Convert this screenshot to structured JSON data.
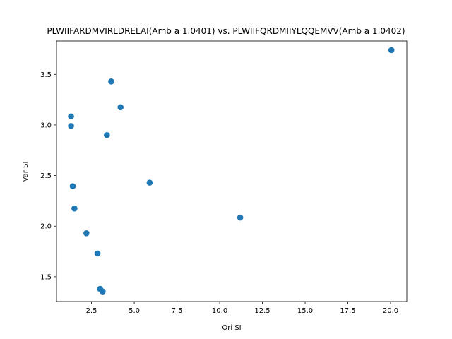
{
  "chart_data": {
    "type": "scatter",
    "title": "PLWIIFARDMVIRLDRELAI(Amb a 1.0401) vs. PLWIIFQRDMIIYLQQEMVV(Amb a 1.0402)",
    "xlabel": "Ori SI",
    "ylabel": "Var SI",
    "xlim": [
      0.45,
      20.95
    ],
    "ylim": [
      1.255,
      3.83
    ],
    "xticks": [
      2.5,
      5.0,
      7.5,
      10.0,
      12.5,
      15.0,
      17.5,
      20.0
    ],
    "xtick_labels": [
      "2.5",
      "5.0",
      "7.5",
      "10.0",
      "12.5",
      "15.0",
      "17.5",
      "20.0"
    ],
    "yticks": [
      1.5,
      2.0,
      2.5,
      3.0,
      3.5
    ],
    "ytick_labels": [
      "1.5",
      "2.0",
      "2.5",
      "3.0",
      "3.5"
    ],
    "grid": false,
    "marker_color": "#1f77b4",
    "points": [
      {
        "x": 20.05,
        "y": 3.74
      },
      {
        "x": 3.65,
        "y": 3.43
      },
      {
        "x": 4.2,
        "y": 3.175
      },
      {
        "x": 1.3,
        "y": 3.085
      },
      {
        "x": 1.3,
        "y": 2.99
      },
      {
        "x": 3.4,
        "y": 2.9
      },
      {
        "x": 1.4,
        "y": 2.395
      },
      {
        "x": 5.9,
        "y": 2.43
      },
      {
        "x": 1.5,
        "y": 2.175
      },
      {
        "x": 11.2,
        "y": 2.085
      },
      {
        "x": 2.2,
        "y": 1.93
      },
      {
        "x": 2.85,
        "y": 1.73
      },
      {
        "x": 3.0,
        "y": 1.38
      },
      {
        "x": 3.15,
        "y": 1.355
      }
    ]
  }
}
